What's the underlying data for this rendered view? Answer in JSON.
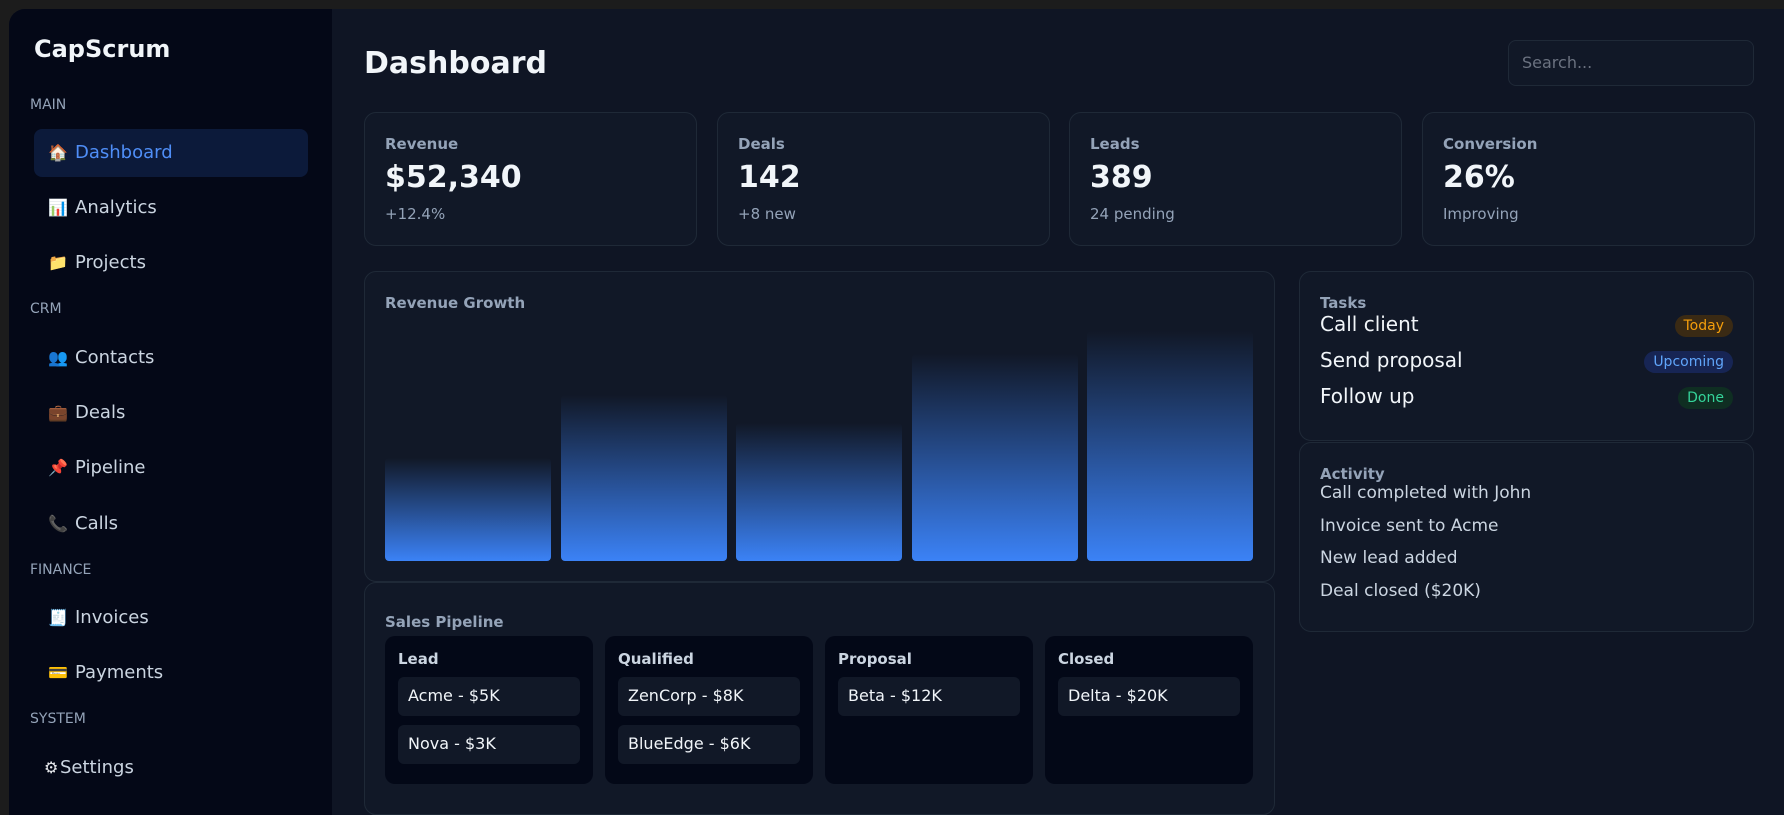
{
  "brand": "CapScrum",
  "sidebar": {
    "sections": [
      {
        "label": "MAIN",
        "items": [
          {
            "icon": "🏠",
            "label": "Dashboard"
          },
          {
            "icon": "📊",
            "label": "Analytics"
          },
          {
            "icon": "📁",
            "label": "Projects"
          }
        ]
      },
      {
        "label": "CRM",
        "items": [
          {
            "icon": "👥",
            "label": "Contacts"
          },
          {
            "icon": "💼",
            "label": "Deals"
          },
          {
            "icon": "📌",
            "label": "Pipeline"
          },
          {
            "icon": "📞",
            "label": "Calls"
          }
        ]
      },
      {
        "label": "FINANCE",
        "items": [
          {
            "icon": "🧾",
            "label": "Invoices"
          },
          {
            "icon": "💳",
            "label": "Payments"
          }
        ]
      },
      {
        "label": "SYSTEM",
        "items": [
          {
            "icon": "⚙",
            "label": "Settings"
          }
        ]
      }
    ]
  },
  "header": {
    "title": "Dashboard",
    "search": "Search..."
  },
  "stats": [
    {
      "label": "Revenue",
      "value": "$52,340",
      "note": "+12.4%"
    },
    {
      "label": "Deals",
      "value": "142",
      "note": "+8 new"
    },
    {
      "label": "Leads",
      "value": "389",
      "note": "24 pending"
    },
    {
      "label": "Conversion",
      "value": "26%",
      "note": "Improving"
    }
  ],
  "revenue_growth": {
    "title": "Revenue Growth",
    "values": [
      45,
      72,
      60,
      90,
      100
    ],
    "ylim": [
      0,
      100
    ]
  },
  "pipeline": {
    "title": "Sales Pipeline",
    "columns": [
      {
        "name": "Lead",
        "items": [
          "Acme - $5K",
          "Nova - $3K"
        ]
      },
      {
        "name": "Qualified",
        "items": [
          "ZenCorp - $8K",
          "BlueEdge - $6K"
        ]
      },
      {
        "name": "Proposal",
        "items": [
          "Beta - $12K"
        ]
      },
      {
        "name": "Closed",
        "items": [
          "Delta - $20K"
        ]
      }
    ]
  },
  "tasks": {
    "title": "Tasks",
    "items": [
      {
        "label": "Call client",
        "status": "Today"
      },
      {
        "label": "Send proposal",
        "status": "Upcoming"
      },
      {
        "label": "Follow up",
        "status": "Done"
      }
    ]
  },
  "activity": {
    "title": "Activity",
    "items": [
      "Call completed with John",
      "Invoice sent to Acme",
      "New lead added",
      "Deal closed ($20K)"
    ]
  }
}
